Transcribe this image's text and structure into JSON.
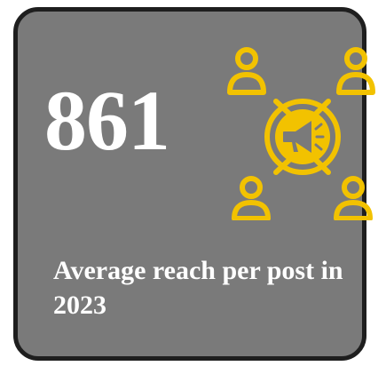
{
  "stat": {
    "value": "861",
    "caption": "Average reach per post in 2023"
  },
  "icon": {
    "name": "megaphone-network-icon",
    "color": "#f2c200"
  },
  "colors": {
    "card_background": "#7a7a7a",
    "card_border": "#1e1e1e",
    "text": "#ffffff"
  }
}
